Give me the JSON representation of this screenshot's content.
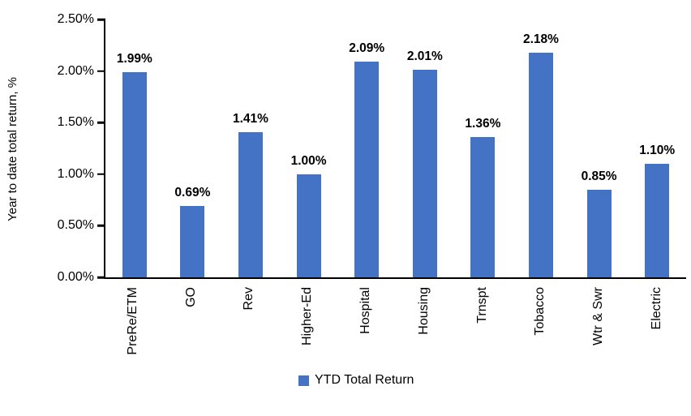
{
  "chart_data": {
    "type": "bar",
    "categories": [
      "PreRe/ETM",
      "GO",
      "Rev",
      "Higher-Ed",
      "Hospital",
      "Housing",
      "Trnspt",
      "Tobacco",
      "Wtr & Swr",
      "Electric"
    ],
    "values": [
      1.99,
      0.69,
      1.41,
      1.0,
      2.09,
      2.01,
      1.36,
      2.18,
      0.85,
      1.1
    ],
    "data_labels": [
      "1.99%",
      "0.69%",
      "1.41%",
      "1.00%",
      "2.09%",
      "2.01%",
      "1.36%",
      "2.18%",
      "0.85%",
      "1.10%"
    ],
    "title": "",
    "xlabel": "",
    "ylabel": "Year to date total return, %",
    "ylim": [
      0,
      2.5
    ],
    "yticks": [
      "0.00%",
      "0.50%",
      "1.00%",
      "1.50%",
      "2.00%",
      "2.50%"
    ],
    "ytick_values": [
      0,
      0.5,
      1.0,
      1.5,
      2.0,
      2.5
    ],
    "grid": false,
    "legend_position": "bottom",
    "series_name": "YTD Total Return",
    "bar_color": "#4472C4"
  },
  "legend": {
    "label": "YTD Total Return",
    "swatch_color": "#4472C4"
  },
  "y_axis": {
    "title": "Year to date total return, %"
  }
}
